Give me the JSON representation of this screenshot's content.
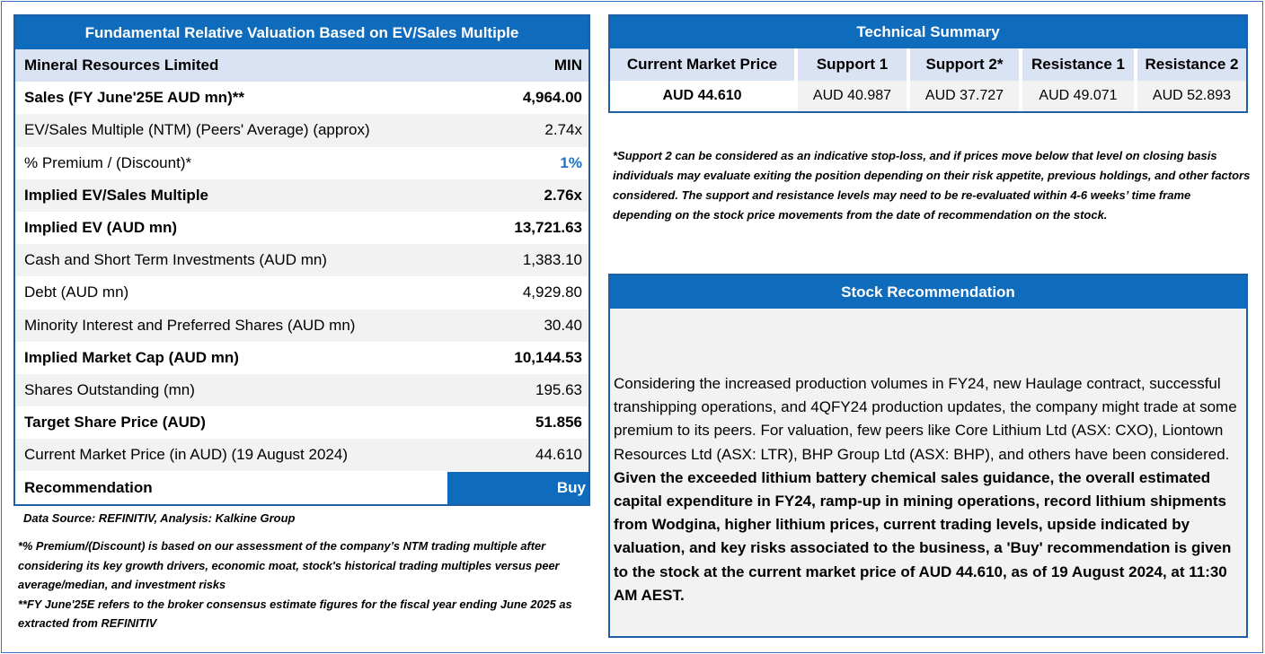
{
  "valuation": {
    "title": "Fundamental Relative Valuation Based on EV/Sales Multiple",
    "company": "Mineral Resources Limited",
    "ticker": "MIN",
    "rows": [
      {
        "label": "Sales (FY June'25E AUD mn)**",
        "value": "4,964.00"
      },
      {
        "label": "EV/Sales Multiple (NTM)  (Peers' Average) (approx)",
        "value": "2.74x"
      },
      {
        "label": "% Premium / (Discount)*",
        "value": "1%"
      },
      {
        "label": "Implied EV/Sales Multiple",
        "value": "2.76x"
      },
      {
        "label": "Implied EV (AUD mn)",
        "value": "13,721.63"
      },
      {
        "label": "Cash and Short Term Investments (AUD mn)",
        "value": "1,383.10"
      },
      {
        "label": "Debt (AUD mn)",
        "value": "4,929.80"
      },
      {
        "label": "Minority Interest and Preferred Shares (AUD mn)",
        "value": "30.40"
      },
      {
        "label": "Implied Market Cap (AUD mn)",
        "value": "10,144.53"
      },
      {
        "label": "Shares Outstanding (mn)",
        "value": "195.63"
      },
      {
        "label": "Target Share Price (AUD)",
        "value": "51.856"
      },
      {
        "label": "Current Market Price (in AUD) (19 August 2024)",
        "value": "44.610"
      },
      {
        "label": "Recommendation",
        "value": "Buy"
      }
    ]
  },
  "notes_left": {
    "source": "Data Source: REFINITIV, Analysis: Kalkine Group",
    "premium_note": "*% Premium/(Discount) is based on our assessment of the company’s NTM trading multiple after considering its key growth drivers, economic moat, stock's historical trading multiples versus peer average/median, and investment risks",
    "fy_note": "**FY June'25E refers to the broker consensus estimate figures for the fiscal year ending June 2025  as extracted from REFINITIV"
  },
  "technical": {
    "title": "Technical Summary",
    "headers": [
      "Current Market Price",
      "Support 1",
      "Support 2*",
      "Resistance 1",
      "Resistance 2"
    ],
    "values": [
      "AUD 44.610",
      "AUD 40.987",
      "AUD 37.727",
      "AUD 49.071",
      "AUD 52.893"
    ]
  },
  "notes_right": {
    "support_note": "*Support 2 can be considered as an indicative stop-loss, and if prices move below that level on closing basis individuals may evaluate exiting the position depending on their risk appetite, previous holdings, and other factors considered. The support and resistance levels may need to be re-evaluated within 4-6 weeks’ time frame depending on the stock price movements from the date of recommendation on the stock."
  },
  "recommendation": {
    "title": "Stock Recommendation",
    "text_plain": "Considering the increased production volumes in FY24, new Haulage contract, successful transhipping operations, and 4QFY24 production updates, the company might trade at some premium to its peers. For valuation, few peers like Core Lithium Ltd (ASX: CXO), Liontown Resources Ltd (ASX: LTR), BHP Group Ltd (ASX: BHP), and others have been considered. ",
    "text_bold": "Given the exceeded lithium battery chemical sales guidance, the overall estimated capital expenditure in FY24, ramp-up in mining operations, record lithium shipments from Wodgina, higher lithium prices, current trading levels, upside indicated by valuation, and key risks associated to the business, a 'Buy' recommendation is given to the stock at the current market price of AUD 44.610, as of 19 August 2024, at 11:30 AM AEST."
  },
  "colors": {
    "header_blue": "#0f6cbd",
    "border_blue": "#1f5fa8",
    "light_blue": "#dae3f3",
    "row_grey": "#f2f2f2",
    "premium_blue": "#1f73c4"
  }
}
